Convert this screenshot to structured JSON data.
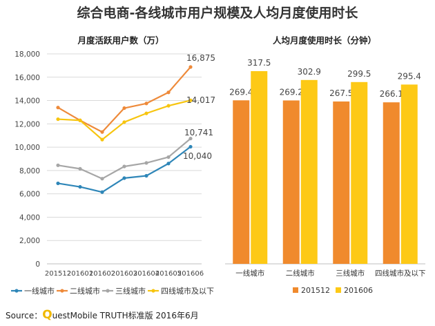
{
  "title": "综合电商-各线城市用户规模及人均月度使用时长",
  "source": {
    "prefix": "Source：",
    "brand_q": "Q",
    "rest": "uestMobile TRUTH标准版 2016年6月"
  },
  "colors": {
    "series_blue": "#2e86b8",
    "series_orange": "#ee8a3a",
    "series_gray": "#a6a6a6",
    "series_yellow": "#f7c50f",
    "bar_2015": "#f08a2d",
    "bar_2016": "#fdc916"
  },
  "chart_data": [
    {
      "type": "line",
      "title": "月度活跃用户数（万）",
      "x": [
        "201512",
        "201601",
        "201602",
        "201603",
        "201604",
        "201605",
        "201606"
      ],
      "ylim": [
        0,
        18000
      ],
      "yticks": [
        0,
        2000,
        4000,
        6000,
        8000,
        10000,
        12000,
        14000,
        16000,
        18000
      ],
      "ytick_labels": [
        "0",
        "2,000",
        "4,000",
        "6,000",
        "8,000",
        "10,000",
        "12,000",
        "14,000",
        "16,000",
        "18,000"
      ],
      "grid": true,
      "legend_position": "bottom",
      "series": [
        {
          "name": "一线城市",
          "color": "#2e86b8",
          "values": [
            6900,
            6600,
            6150,
            7350,
            7550,
            8600,
            10040
          ],
          "end_label": "10,040"
        },
        {
          "name": "二线城市",
          "color": "#ee8a3a",
          "values": [
            13400,
            12300,
            11300,
            13350,
            13750,
            14700,
            16875
          ],
          "end_label": "16,875"
        },
        {
          "name": "三线城市",
          "color": "#a6a6a6",
          "values": [
            8450,
            8150,
            7300,
            8350,
            8650,
            9150,
            10741
          ],
          "end_label": "10,741"
        },
        {
          "name": "四线城市及以下",
          "color": "#f7c50f",
          "values": [
            12400,
            12300,
            10650,
            12150,
            12900,
            13550,
            14017
          ],
          "end_label": "14,017"
        }
      ]
    },
    {
      "type": "bar",
      "title": "人均月度使用时长（分钟）",
      "categories": [
        "一线城市",
        "二线城市",
        "三线城市",
        "四线城市及以下"
      ],
      "ylim": [
        0,
        330
      ],
      "grid": false,
      "legend_position": "bottom",
      "series": [
        {
          "name": "201512",
          "color": "#f08a2d",
          "values": [
            269.4,
            269.2,
            267.5,
            266.1
          ],
          "labels": [
            "269.4",
            "269.2",
            "267.5",
            "266.1"
          ]
        },
        {
          "name": "201606",
          "color": "#fdc916",
          "values": [
            317.5,
            302.9,
            299.5,
            295.4
          ],
          "labels": [
            "317.5",
            "302.9",
            "299.5",
            "295.4"
          ]
        }
      ]
    }
  ]
}
